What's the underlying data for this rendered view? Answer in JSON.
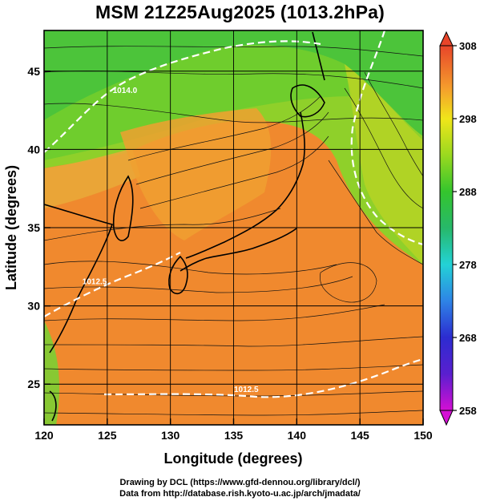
{
  "title": "MSM 21Z25Aug2025 (1013.2hPa)",
  "map": {
    "xlabel": "Longitude (degrees)",
    "ylabel": "Latitude  (degrees)",
    "x_ticks": [
      "120",
      "125",
      "130",
      "135",
      "140",
      "145",
      "150"
    ],
    "x_tick_values": [
      120,
      125,
      130,
      135,
      140,
      145,
      150
    ],
    "y_ticks": [
      "25",
      "30",
      "35",
      "40",
      "45"
    ],
    "y_tick_values": [
      25,
      30,
      35,
      40,
      45
    ],
    "lon_range": [
      120,
      150
    ],
    "lat_range": [
      22.4,
      47.6
    ],
    "grid": true,
    "contour_labels": [
      {
        "text": "1014.0",
        "lon": 126.4,
        "lat": 43.6
      },
      {
        "text": "1012.5",
        "lon": 124.0,
        "lat": 31.4
      },
      {
        "text": "1012.5",
        "lon": 136.0,
        "lat": 24.5
      }
    ]
  },
  "colorbar": {
    "ticks": [
      "308",
      "298",
      "288",
      "278",
      "268",
      "258"
    ],
    "tick_values": [
      308,
      298,
      288,
      278,
      268,
      258
    ],
    "range": [
      258,
      308
    ],
    "colors": [
      "#d40fd4",
      "#2c2cd0",
      "#2e84e6",
      "#23d2d6",
      "#27b86a",
      "#34c52d",
      "#9ad91f",
      "#f0e61a",
      "#f5b42c",
      "#f07a2c",
      "#e8452a"
    ]
  },
  "credits": {
    "line1": "Drawing by DCL (https://www.gfd‐dennou.org/library/dcl/)",
    "line2": "Data from http://database.rish.kyoto‐u.ac.jp/arch/jmadata/"
  }
}
